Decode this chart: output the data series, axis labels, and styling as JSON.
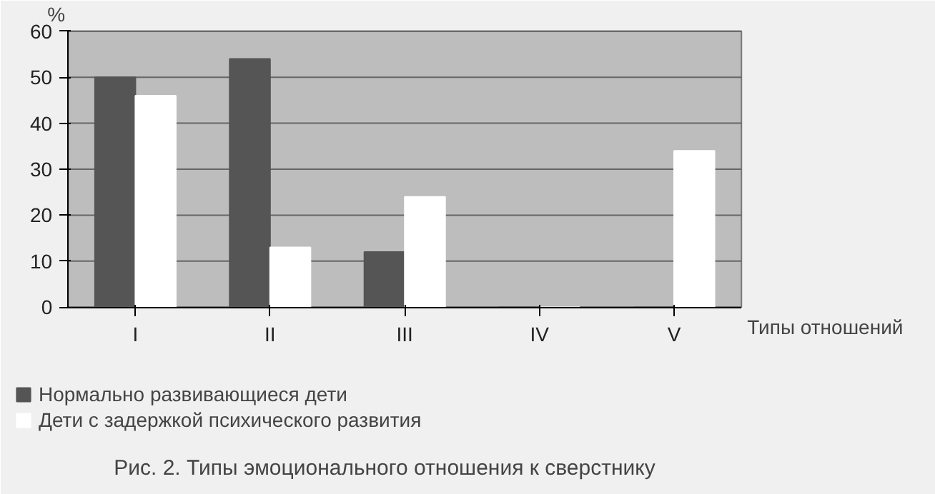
{
  "chart_data": {
    "type": "bar",
    "title": "Рис. 2. Типы эмоционального отношения к сверстнику",
    "xlabel": "Типы отношений",
    "ylabel": "%",
    "categories": [
      "I",
      "II",
      "III",
      "IV",
      "V"
    ],
    "series": [
      {
        "name": "Нормально развивающиеся дети",
        "color": "#555555",
        "values": [
          50,
          54,
          12,
          0,
          0
        ]
      },
      {
        "name": "Дети с задержкой психического развития",
        "color": "#ffffff",
        "values": [
          46,
          13,
          24,
          0,
          34
        ]
      }
    ],
    "ylim": [
      0,
      60
    ],
    "yticks": [
      0,
      10,
      20,
      30,
      40,
      50,
      60
    ],
    "grid": "y",
    "legend": "bottom left"
  }
}
